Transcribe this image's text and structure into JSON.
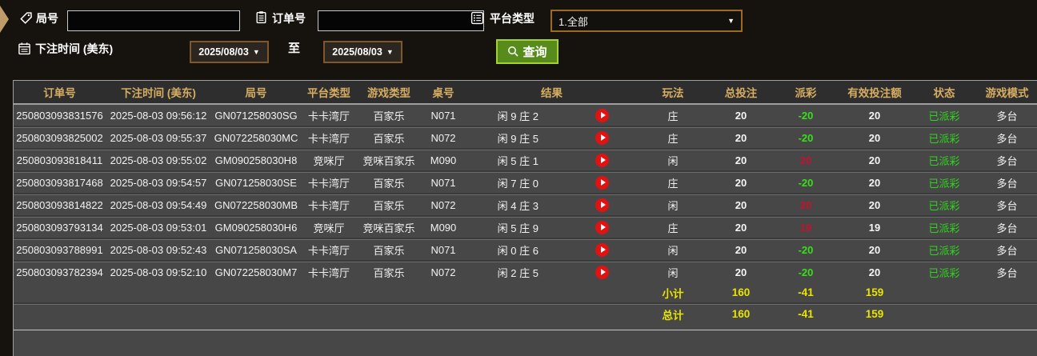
{
  "toolbar": {
    "round_label": "局号",
    "round_value": "",
    "order_label": "订单号",
    "order_value": "",
    "platform_label": "平台类型",
    "platform_value": "1.全部",
    "bet_time_label": "下注时间 (美东)",
    "date_from": "2025/08/03",
    "to_label": "至",
    "date_to": "2025/08/03",
    "search_label": "查询"
  },
  "icons": {
    "collapse_arrow": "panel-collapse-arrow",
    "round": "tag-icon",
    "order": "clipboard-icon",
    "platform": "list-icon",
    "bet_time": "calendar-icon",
    "search": "magnifier-icon",
    "replay": "play-icon"
  },
  "colors": {
    "accent_gold": "#d6ad62",
    "totals_yellow": "#e8e400",
    "payout_loss_green": "#37e019",
    "payout_win_red": "#c9112f",
    "status_green": "#2fd41f",
    "button_green": "#578c1d",
    "orange_border": "#9c6a22"
  },
  "table": {
    "headers": [
      "订单号",
      "下注时间 (美东)",
      "局号",
      "平台类型",
      "游戏类型",
      "桌号",
      "结果",
      "玩法",
      "总投注",
      "派彩",
      "有效投注额",
      "状态",
      "游戏模式"
    ],
    "rows": [
      {
        "order_id": "250803093831576",
        "bet_time": "2025-08-03 09:56:12",
        "round_id": "GN071258030SG",
        "platform": "卡卡湾厅",
        "game_type": "百家乐",
        "table_no": "N071",
        "result": "闲 9 庄 2",
        "play": "庄",
        "total_bet": "20",
        "payout": "-20",
        "payout_tone": "green",
        "valid_bet": "20",
        "status": "已派彩",
        "mode": "多台"
      },
      {
        "order_id": "250803093825002",
        "bet_time": "2025-08-03 09:55:37",
        "round_id": "GN072258030MC",
        "platform": "卡卡湾厅",
        "game_type": "百家乐",
        "table_no": "N072",
        "result": "闲 9 庄 5",
        "play": "庄",
        "total_bet": "20",
        "payout": "-20",
        "payout_tone": "green",
        "valid_bet": "20",
        "status": "已派彩",
        "mode": "多台"
      },
      {
        "order_id": "250803093818411",
        "bet_time": "2025-08-03 09:55:02",
        "round_id": "GM090258030H8",
        "platform": "竞咪厅",
        "game_type": "竞咪百家乐",
        "table_no": "M090",
        "result": "闲 5 庄 1",
        "play": "闲",
        "total_bet": "20",
        "payout": "20",
        "payout_tone": "red",
        "valid_bet": "20",
        "status": "已派彩",
        "mode": "多台"
      },
      {
        "order_id": "250803093817468",
        "bet_time": "2025-08-03 09:54:57",
        "round_id": "GN071258030SE",
        "platform": "卡卡湾厅",
        "game_type": "百家乐",
        "table_no": "N071",
        "result": "闲 7 庄 0",
        "play": "庄",
        "total_bet": "20",
        "payout": "-20",
        "payout_tone": "green",
        "valid_bet": "20",
        "status": "已派彩",
        "mode": "多台"
      },
      {
        "order_id": "250803093814822",
        "bet_time": "2025-08-03 09:54:49",
        "round_id": "GN072258030MB",
        "platform": "卡卡湾厅",
        "game_type": "百家乐",
        "table_no": "N072",
        "result": "闲 4 庄 3",
        "play": "闲",
        "total_bet": "20",
        "payout": "20",
        "payout_tone": "red",
        "valid_bet": "20",
        "status": "已派彩",
        "mode": "多台"
      },
      {
        "order_id": "250803093793134",
        "bet_time": "2025-08-03 09:53:01",
        "round_id": "GM090258030H6",
        "platform": "竞咪厅",
        "game_type": "竞咪百家乐",
        "table_no": "M090",
        "result": "闲 5 庄 9",
        "play": "庄",
        "total_bet": "20",
        "payout": "19",
        "payout_tone": "red",
        "valid_bet": "19",
        "status": "已派彩",
        "mode": "多台"
      },
      {
        "order_id": "250803093788991",
        "bet_time": "2025-08-03 09:52:43",
        "round_id": "GN071258030SA",
        "platform": "卡卡湾厅",
        "game_type": "百家乐",
        "table_no": "N071",
        "result": "闲 0 庄 6",
        "play": "闲",
        "total_bet": "20",
        "payout": "-20",
        "payout_tone": "green",
        "valid_bet": "20",
        "status": "已派彩",
        "mode": "多台"
      },
      {
        "order_id": "250803093782394",
        "bet_time": "2025-08-03 09:52:10",
        "round_id": "GN072258030M7",
        "platform": "卡卡湾厅",
        "game_type": "百家乐",
        "table_no": "N072",
        "result": "闲 2 庄 5",
        "play": "闲",
        "total_bet": "20",
        "payout": "-20",
        "payout_tone": "green",
        "valid_bet": "20",
        "status": "已派彩",
        "mode": "多台"
      }
    ],
    "subtotal": {
      "label": "小计",
      "total_bet": "160",
      "payout": "-41",
      "valid_bet": "159"
    },
    "grand_total": {
      "label": "总计",
      "total_bet": "160",
      "payout": "-41",
      "valid_bet": "159"
    }
  }
}
